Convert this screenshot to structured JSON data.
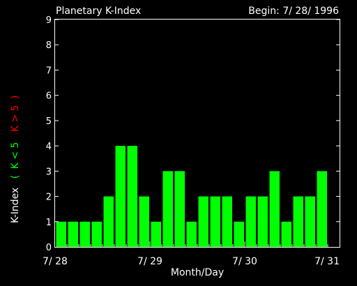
{
  "chart_data": {
    "type": "bar",
    "title": "Planetary K-Index",
    "subtitle": "Begin: 7/ 28/ 1996",
    "xlabel": "Month/Day",
    "ylabel": "K-Index",
    "legend": {
      "open": "(",
      "low": "K < 5",
      "high": "K > 5",
      "close": ")"
    },
    "colors": {
      "low": "#00ff00",
      "high": "#ff0000",
      "text": "#ffffff",
      "background": "#000000"
    },
    "ylim": [
      0,
      9
    ],
    "xlim": [
      0,
      24
    ],
    "yticks": [
      "0",
      "1",
      "2",
      "3",
      "4",
      "5",
      "6",
      "7",
      "8",
      "9"
    ],
    "xticks": [
      {
        "label": "7/ 28",
        "value": 0
      },
      {
        "label": "7/ 29",
        "value": 8
      },
      {
        "label": "7/ 30",
        "value": 16
      },
      {
        "label": "7/ 31",
        "value": 24
      }
    ],
    "values": [
      1,
      1,
      1,
      1,
      2,
      4,
      4,
      2,
      1,
      3,
      3,
      1,
      2,
      2,
      2,
      1,
      2,
      2,
      3,
      1,
      2,
      2,
      3
    ]
  }
}
